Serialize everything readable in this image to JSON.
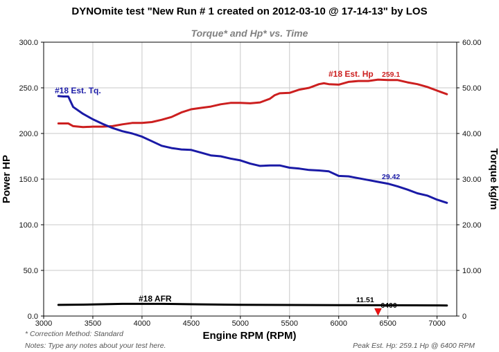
{
  "chart_data": {
    "type": "line",
    "title": "DYNOmite test \"New Run # 1 created on 2012-03-10 @ 17-14-13\" by LOS",
    "subtitle": "Torque* and Hp* vs. Time",
    "xlabel": "Engine RPM (RPM)",
    "ylabel_left": "Power HP",
    "ylabel_right": "Torque kg/m",
    "xlim": [
      3000,
      7200
    ],
    "ylim_left": [
      0,
      300
    ],
    "ylim_right": [
      0,
      60
    ],
    "x_ticks": [
      "3000",
      "3500",
      "4000",
      "4500",
      "5000",
      "5500",
      "6000",
      "6500",
      "7000"
    ],
    "y_left_ticks": [
      "0.0",
      "50.0",
      "100.0",
      "150.0",
      "200.0",
      "250.0",
      "300.0"
    ],
    "y_right_ticks": [
      "0",
      "10.00",
      "20.00",
      "30.00",
      "40.00",
      "50.00",
      "60.00"
    ],
    "grid": true,
    "series": [
      {
        "name": "#18 Est. Hp",
        "axis": "left",
        "color": "#cc1f1f",
        "value_label": "259.1",
        "points": [
          [
            3150,
            211
          ],
          [
            3250,
            211
          ],
          [
            3300,
            208
          ],
          [
            3400,
            207
          ],
          [
            3500,
            207.5
          ],
          [
            3600,
            207.5
          ],
          [
            3700,
            208
          ],
          [
            3800,
            210
          ],
          [
            3900,
            211.5
          ],
          [
            4000,
            211.5
          ],
          [
            4100,
            212.5
          ],
          [
            4200,
            215
          ],
          [
            4300,
            218
          ],
          [
            4400,
            223
          ],
          [
            4500,
            226.5
          ],
          [
            4600,
            228
          ],
          [
            4700,
            229.5
          ],
          [
            4800,
            232
          ],
          [
            4900,
            233.5
          ],
          [
            5000,
            233.5
          ],
          [
            5100,
            233
          ],
          [
            5200,
            234
          ],
          [
            5300,
            238
          ],
          [
            5350,
            242
          ],
          [
            5400,
            244
          ],
          [
            5500,
            244.5
          ],
          [
            5600,
            248
          ],
          [
            5700,
            250
          ],
          [
            5800,
            254
          ],
          [
            5850,
            255
          ],
          [
            5900,
            254
          ],
          [
            6000,
            253.5
          ],
          [
            6100,
            256.5
          ],
          [
            6200,
            257.5
          ],
          [
            6300,
            257.5
          ],
          [
            6400,
            259
          ],
          [
            6500,
            258.5
          ],
          [
            6600,
            258.5
          ],
          [
            6700,
            256
          ],
          [
            6800,
            254
          ],
          [
            6900,
            251
          ],
          [
            7000,
            247
          ],
          [
            7100,
            243
          ]
        ]
      },
      {
        "name": "#18 Est. Tq.",
        "axis": "right",
        "color": "#1a1aa6",
        "value_label": "29.42",
        "points": [
          [
            3150,
            48.2
          ],
          [
            3200,
            48.1
          ],
          [
            3250,
            48.1
          ],
          [
            3300,
            45.8
          ],
          [
            3400,
            44.3
          ],
          [
            3500,
            43.1
          ],
          [
            3600,
            42.1
          ],
          [
            3700,
            41.2
          ],
          [
            3800,
            40.5
          ],
          [
            3900,
            40
          ],
          [
            4000,
            39.3
          ],
          [
            4100,
            38.3
          ],
          [
            4200,
            37.3
          ],
          [
            4300,
            36.8
          ],
          [
            4400,
            36.5
          ],
          [
            4500,
            36.4
          ],
          [
            4600,
            35.8
          ],
          [
            4700,
            35.2
          ],
          [
            4800,
            35
          ],
          [
            4900,
            34.5
          ],
          [
            5000,
            34.1
          ],
          [
            5100,
            33.4
          ],
          [
            5200,
            32.9
          ],
          [
            5300,
            33
          ],
          [
            5400,
            33
          ],
          [
            5500,
            32.5
          ],
          [
            5600,
            32.3
          ],
          [
            5700,
            32
          ],
          [
            5800,
            31.9
          ],
          [
            5900,
            31.7
          ],
          [
            6000,
            30.7
          ],
          [
            6100,
            30.6
          ],
          [
            6200,
            30.2
          ],
          [
            6300,
            29.8
          ],
          [
            6400,
            29.4
          ],
          [
            6500,
            29
          ],
          [
            6600,
            28.4
          ],
          [
            6700,
            27.7
          ],
          [
            6800,
            26.9
          ],
          [
            6900,
            26.4
          ],
          [
            7000,
            25.5
          ],
          [
            7100,
            24.8
          ]
        ]
      },
      {
        "name": "#18 AFR",
        "axis": "left",
        "color": "#000000",
        "value_label": "11.51",
        "points": [
          [
            3150,
            12.2
          ],
          [
            3400,
            12.5
          ],
          [
            3800,
            13.3
          ],
          [
            4200,
            13.3
          ],
          [
            4600,
            12.8
          ],
          [
            5000,
            12.3
          ],
          [
            5500,
            12.1
          ],
          [
            6000,
            12
          ],
          [
            6500,
            11.8
          ],
          [
            7100,
            11.6
          ]
        ]
      }
    ],
    "marker": {
      "x": 6400,
      "label": "6400",
      "color": "#ee1111"
    },
    "series_labels": {
      "hp": "#18 Est. Hp",
      "hp_value": "259.1",
      "tq": "#18 Est. Tq.",
      "tq_value": "29.42",
      "afr": "#18 AFR",
      "afr_value": "11.51"
    },
    "notes": {
      "correction": "* Correction Method: Standard",
      "notes": "Notes: Type any notes about your test here.",
      "peak": "Peak Est. Hp: 259.1 Hp @ 6400 RPM"
    }
  }
}
